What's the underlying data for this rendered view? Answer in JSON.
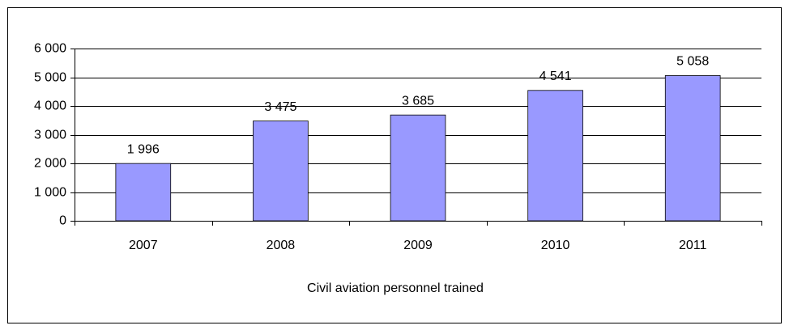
{
  "chart_data": {
    "type": "bar",
    "x_label": "Civil aviation personnel trained",
    "categories": [
      "2007",
      "2008",
      "2009",
      "2010",
      "2011"
    ],
    "values": [
      1996,
      3475,
      3685,
      4541,
      5058
    ],
    "value_labels": [
      "1 996",
      "3 475",
      "3 685",
      "4 541",
      "5 058"
    ],
    "color": "#9999ff",
    "ylim": [
      0,
      6000
    ],
    "yticks": [
      0,
      {
        "value": 1000,
        "label": "1 000"
      },
      {
        "value": 2000,
        "label": "2 000"
      },
      {
        "value": 3000,
        "label": "3 000"
      },
      {
        "value": 4000,
        "label": "4 000"
      },
      {
        "value": 5000,
        "label": "5 000"
      },
      {
        "value": 6000,
        "label": "6 000"
      }
    ],
    "grid": true
  }
}
